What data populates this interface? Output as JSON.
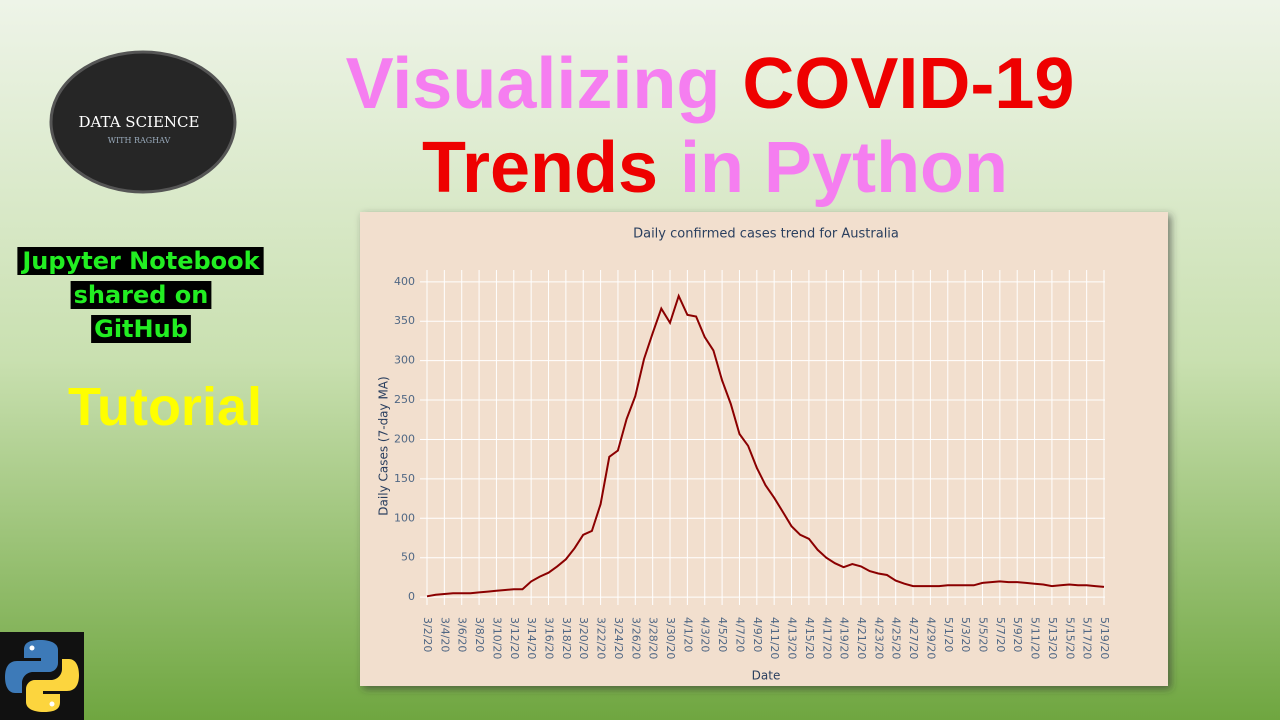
{
  "logo": {
    "line1": "DATA SCIENCE",
    "line2": "WITH RAGHAV"
  },
  "headline": {
    "line1": [
      {
        "text": "Visualizing",
        "color": "#f57ef0"
      },
      {
        "text": "COVID-19",
        "color": "#ee0000"
      }
    ],
    "line2": [
      {
        "text": "Trends",
        "color": "#ee0000"
      },
      {
        "text": "in Python",
        "color": "#f57ef0"
      }
    ]
  },
  "sidebar": {
    "notice": [
      "Jupyter Notebook",
      "shared on",
      "GitHub"
    ],
    "notice_color": "#22ee22",
    "label": "Tutorial",
    "label_color": "#ffff00"
  },
  "chart_data": {
    "type": "line",
    "title": "Daily confirmed cases trend for Australia",
    "x_label": "Date",
    "y_label": "Daily Cases (7-day MA)",
    "categories": [
      "3/2/20",
      null,
      "3/4/20",
      null,
      "3/6/20",
      null,
      "3/8/20",
      null,
      "3/10/20",
      null,
      "3/12/20",
      null,
      "3/14/20",
      null,
      "3/16/20",
      null,
      "3/18/20",
      null,
      "3/20/20",
      null,
      "3/22/20",
      null,
      "3/24/20",
      null,
      "3/26/20",
      null,
      "3/28/20",
      null,
      "3/30/20",
      null,
      "4/1/20",
      null,
      "4/3/20",
      null,
      "4/5/20",
      null,
      "4/7/20",
      null,
      "4/9/20",
      null,
      "4/11/20",
      null,
      "4/13/20",
      null,
      "4/15/20",
      null,
      "4/17/20",
      null,
      "4/19/20",
      null,
      "4/21/20",
      null,
      "4/23/20",
      null,
      "4/25/20",
      null,
      "4/27/20",
      null,
      "4/29/20",
      null,
      "5/1/20",
      null,
      "5/3/20",
      null,
      "5/5/20",
      null,
      "5/7/20",
      null,
      "5/9/20",
      null,
      "5/11/20",
      null,
      "5/13/20",
      null,
      "5/15/20",
      null,
      "5/17/20",
      null,
      "5/19/20"
    ],
    "series": [
      {
        "name": "Australia",
        "color": "#8b0000",
        "values": [
          1,
          3,
          4,
          5,
          5,
          5,
          6,
          7,
          8,
          9,
          10,
          10,
          20,
          26,
          31,
          39,
          48,
          62,
          79,
          84,
          118,
          178,
          186,
          226,
          255,
          302,
          335,
          366,
          348,
          382,
          358,
          356,
          330,
          313,
          275,
          245,
          207,
          192,
          164,
          142,
          126,
          108,
          90,
          79,
          74,
          60,
          50,
          43,
          38,
          42,
          39,
          33,
          30,
          28,
          21,
          17,
          14,
          14,
          14,
          14,
          15,
          15,
          15,
          15,
          18,
          19,
          20,
          19,
          19,
          18,
          17,
          16,
          14,
          15,
          16,
          15,
          15,
          14,
          13
        ]
      }
    ],
    "ylim": [
      -10,
      415
    ],
    "yticks": [
      0,
      50,
      100,
      150,
      200,
      250,
      300,
      350,
      400
    ],
    "grid": true,
    "background": "#f2dfce"
  }
}
